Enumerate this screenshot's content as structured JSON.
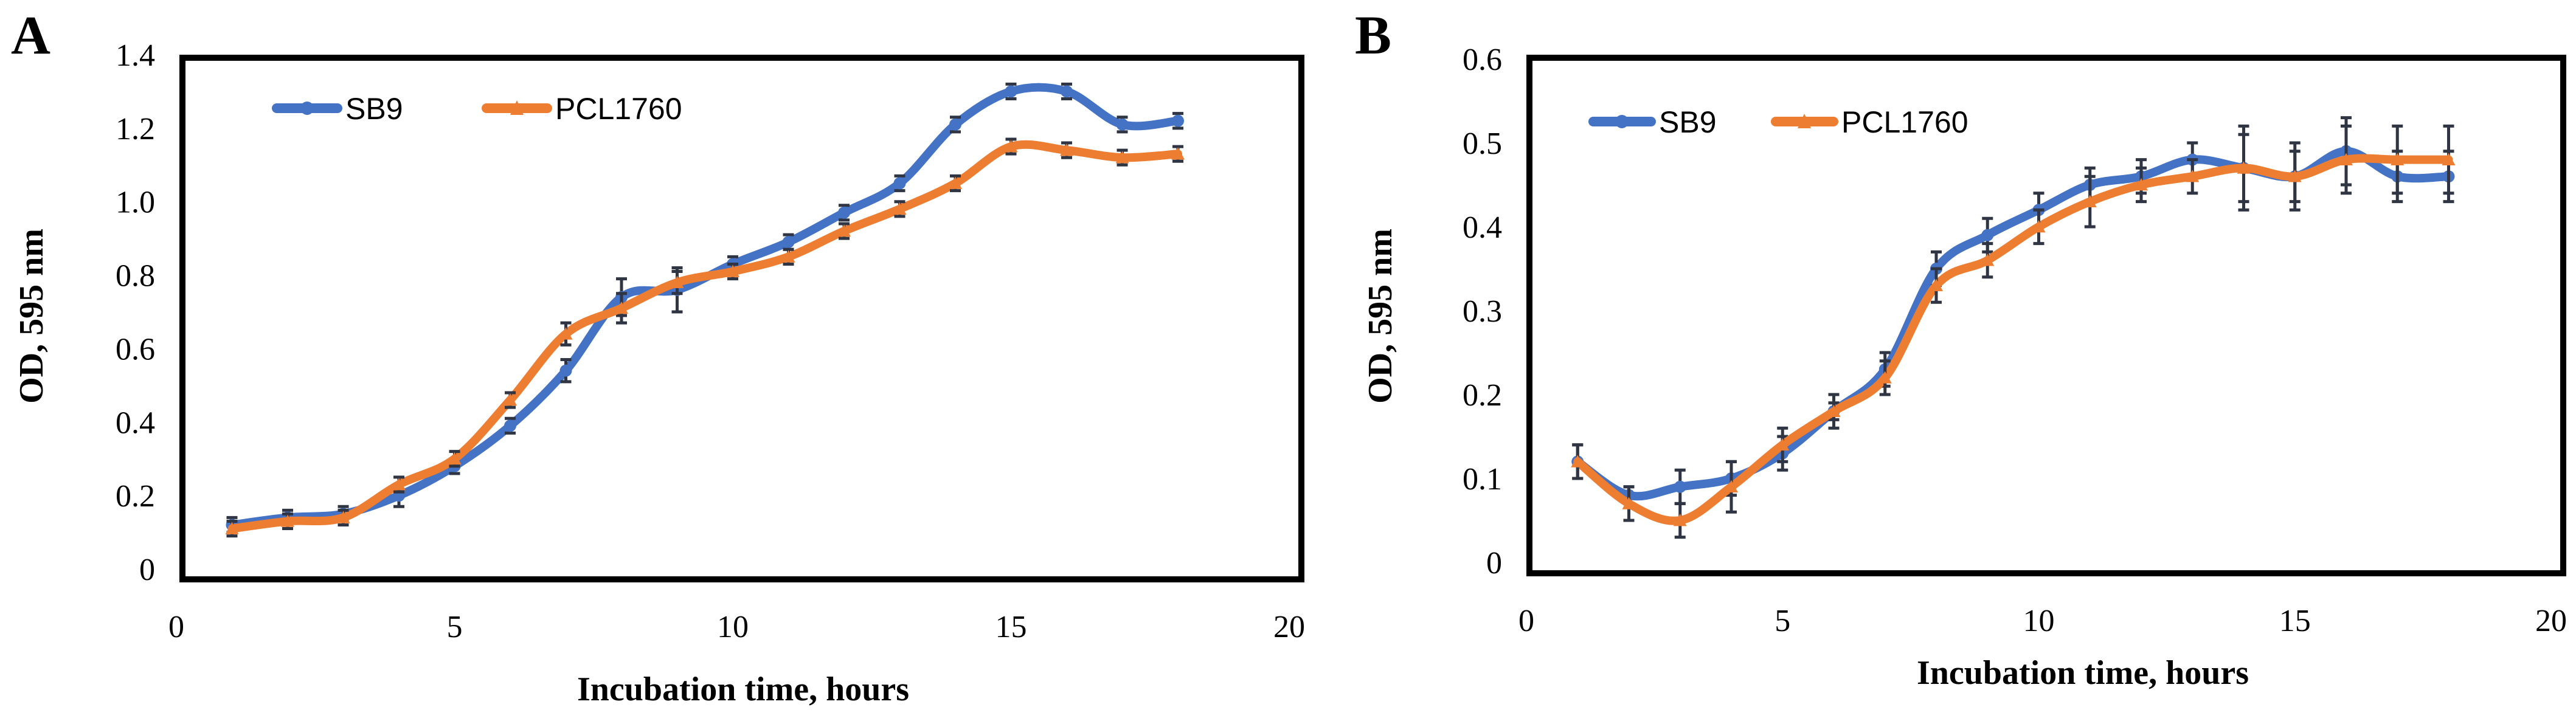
{
  "chart_data": [
    {
      "type": "line",
      "panel": "A",
      "title": "",
      "xlabel": "Incubation time, hours",
      "ylabel": "OD, 595 nm",
      "xlim": [
        0,
        20
      ],
      "ylim": [
        0,
        1.4
      ],
      "x_ticks": [
        0,
        5,
        10,
        15,
        20
      ],
      "y_ticks": [
        0,
        0.2,
        0.4,
        0.6,
        0.8,
        1.0,
        1.2,
        1.4
      ],
      "y_tick_labels": [
        "0",
        "0.2",
        "0.4",
        "0.6",
        "0.8",
        "1.0",
        "1.2",
        "1.4"
      ],
      "legend_position": "top-left",
      "grid": false,
      "x": [
        1,
        2,
        3,
        4,
        5,
        6,
        7,
        8,
        9,
        10,
        11,
        12,
        13,
        14,
        15,
        16,
        17,
        18
      ],
      "series": [
        {
          "name": "SB9",
          "color": "#4472C4",
          "marker": "circle",
          "values": [
            0.12,
            0.14,
            0.15,
            0.2,
            0.28,
            0.39,
            0.54,
            0.74,
            0.76,
            0.83,
            0.89,
            0.97,
            1.05,
            1.21,
            1.3,
            1.3,
            1.21,
            1.22
          ],
          "errors": [
            0.02,
            0.02,
            0.02,
            0.03,
            0.02,
            0.02,
            0.03,
            0.05,
            0.06,
            0.02,
            0.02,
            0.02,
            0.02,
            0.02,
            0.02,
            0.02,
            0.02,
            0.02
          ]
        },
        {
          "name": "PCL1760",
          "color": "#ED7D31",
          "marker": "triangle",
          "values": [
            0.11,
            0.13,
            0.14,
            0.23,
            0.3,
            0.46,
            0.64,
            0.71,
            0.78,
            0.81,
            0.85,
            0.92,
            0.98,
            1.05,
            1.15,
            1.14,
            1.12,
            1.13
          ],
          "errors": [
            0.02,
            0.02,
            0.02,
            0.02,
            0.02,
            0.02,
            0.03,
            0.04,
            0.03,
            0.02,
            0.02,
            0.02,
            0.02,
            0.02,
            0.02,
            0.02,
            0.02,
            0.02
          ]
        }
      ]
    },
    {
      "type": "line",
      "panel": "B",
      "title": "",
      "xlabel": "Incubation time, hours",
      "ylabel": "OD, 595 nm",
      "xlim": [
        0,
        20
      ],
      "ylim": [
        0,
        0.6
      ],
      "x_ticks": [
        0,
        5,
        10,
        15,
        20
      ],
      "y_ticks": [
        0,
        0.1,
        0.2,
        0.3,
        0.4,
        0.5,
        0.6
      ],
      "y_tick_labels": [
        "0",
        "0.1",
        "0.2",
        "0.3",
        "0.4",
        "0.5",
        "0.6"
      ],
      "legend_position": "top-left",
      "grid": false,
      "x": [
        1,
        2,
        3,
        4,
        5,
        6,
        7,
        8,
        9,
        10,
        11,
        12,
        13,
        14,
        15,
        16,
        17,
        18
      ],
      "series": [
        {
          "name": "SB9",
          "color": "#4472C4",
          "marker": "circle",
          "values": [
            0.12,
            0.08,
            0.09,
            0.1,
            0.13,
            0.18,
            0.23,
            0.35,
            0.39,
            0.42,
            0.45,
            0.46,
            0.48,
            0.47,
            0.46,
            0.49,
            0.46,
            0.46
          ],
          "errors": [
            0.02,
            0.01,
            0.02,
            0.02,
            0.02,
            0.01,
            0.02,
            0.02,
            0.02,
            0.02,
            0.02,
            0.02,
            0.02,
            0.05,
            0.04,
            0.04,
            0.03,
            0.03
          ]
        },
        {
          "name": "PCL1760",
          "color": "#ED7D31",
          "marker": "triangle",
          "values": [
            0.12,
            0.07,
            0.05,
            0.09,
            0.14,
            0.18,
            0.22,
            0.33,
            0.36,
            0.4,
            0.43,
            0.45,
            0.46,
            0.47,
            0.46,
            0.48,
            0.48,
            0.48
          ],
          "errors": [
            0.02,
            0.02,
            0.02,
            0.03,
            0.02,
            0.02,
            0.02,
            0.02,
            0.02,
            0.02,
            0.03,
            0.02,
            0.02,
            0.04,
            0.03,
            0.04,
            0.04,
            0.04
          ]
        }
      ]
    }
  ]
}
